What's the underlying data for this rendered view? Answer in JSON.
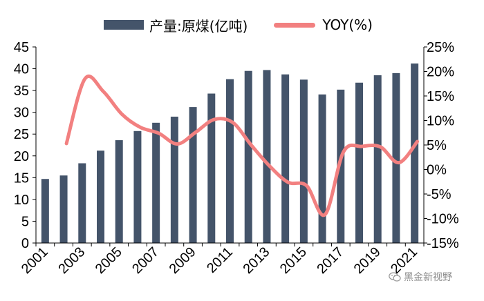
{
  "chart_data": {
    "type": "bar",
    "x": [
      2001,
      2002,
      2003,
      2004,
      2005,
      2006,
      2007,
      2008,
      2009,
      2010,
      2011,
      2012,
      2013,
      2014,
      2015,
      2016,
      2017,
      2018,
      2019,
      2020,
      2021
    ],
    "x_tick_labels": [
      "2001",
      "2003",
      "2005",
      "2007",
      "2009",
      "2011",
      "2013",
      "2015",
      "2017",
      "2019",
      "2021"
    ],
    "series": [
      {
        "name": "产量:原煤(亿吨)",
        "type": "bar",
        "axis": "left",
        "color": "#44546a",
        "values": [
          14.7,
          15.5,
          18.3,
          21.2,
          23.6,
          25.7,
          27.6,
          29.0,
          31.2,
          34.3,
          37.6,
          39.5,
          39.7,
          38.7,
          37.5,
          34.1,
          35.2,
          36.8,
          38.5,
          39.0,
          41.2
        ]
      },
      {
        "name": "YOY(%)",
        "type": "line",
        "axis": "right",
        "color": "#f28080",
        "values": [
          null,
          5.3,
          18.5,
          15.9,
          11.3,
          8.6,
          7.4,
          5.2,
          7.6,
          10.2,
          9.6,
          5.0,
          0.7,
          -2.6,
          -3.3,
          -9.2,
          3.6,
          4.7,
          4.6,
          1.4,
          5.7
        ]
      }
    ],
    "y_left": {
      "min": 0,
      "max": 45,
      "ticks": [
        "0",
        "5",
        "10",
        "15",
        "20",
        "25",
        "30",
        "35",
        "40",
        "45"
      ]
    },
    "y_right": {
      "min": -15,
      "max": 25,
      "ticks": [
        "-15%",
        "-10%",
        "-5%",
        "0%",
        "5%",
        "10%",
        "15%",
        "20%",
        "25%"
      ]
    },
    "legend_position": "top",
    "grid": false
  },
  "watermark": {
    "text": "黑金新视野",
    "icon": "wechat-icon"
  }
}
